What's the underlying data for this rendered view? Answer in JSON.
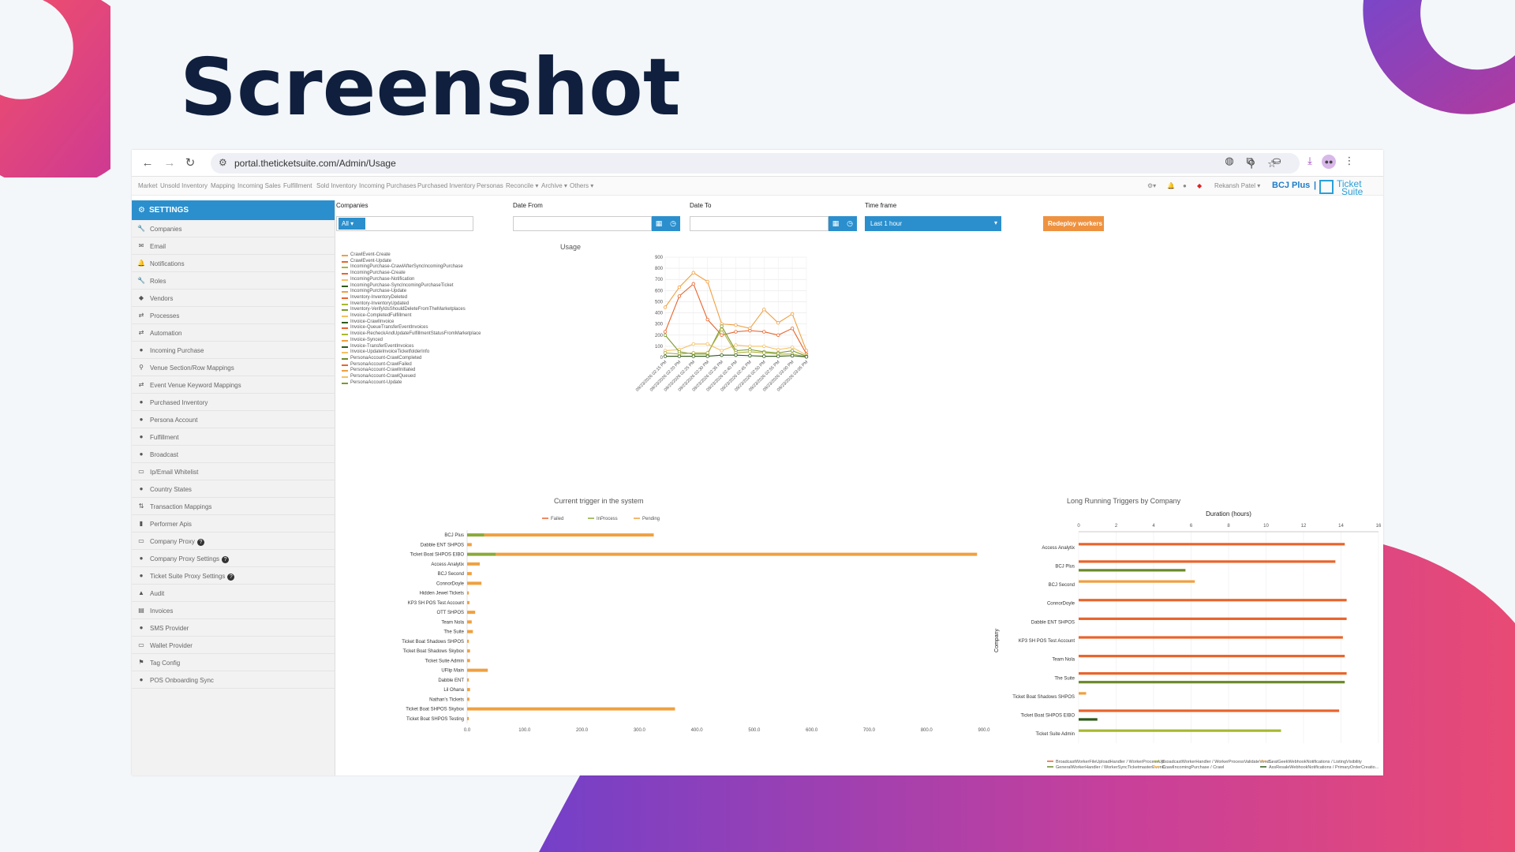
{
  "slide": {
    "title": "Screenshot"
  },
  "browser": {
    "url": "portal.theticketsuite.com/Admin/Usage"
  },
  "topnav": {
    "items": [
      "Market",
      "Unsold Inventory",
      "Mapping",
      "Incoming Sales",
      "Fulfillment",
      "Sold Inventory",
      "Incoming Purchases",
      "Purchased Inventory",
      "Personas",
      "Reconcile",
      "Archive",
      "Others"
    ],
    "user": "Rekansh Patel",
    "brand": "BCJ Plus",
    "logo_line1": "Ticket",
    "logo_line2": "Suite"
  },
  "sidebar": {
    "header": "SETTINGS",
    "items": [
      {
        "label": "Companies",
        "icon": "🔧"
      },
      {
        "label": "Email",
        "icon": "✉"
      },
      {
        "label": "Notifications",
        "icon": "🔔"
      },
      {
        "label": "Roles",
        "icon": "🔧"
      },
      {
        "label": "Vendors",
        "icon": "◆"
      },
      {
        "label": "Processes",
        "icon": "⇄"
      },
      {
        "label": "Automation",
        "icon": "⇄"
      },
      {
        "label": "Incoming Purchase",
        "icon": "●"
      },
      {
        "label": "Venue Section/Row Mappings",
        "icon": "⚲"
      },
      {
        "label": "Event Venue Keyword Mappings",
        "icon": "⇄"
      },
      {
        "label": "Purchased Inventory",
        "icon": "●"
      },
      {
        "label": "Persona Account",
        "icon": "●"
      },
      {
        "label": "Fulfillment",
        "icon": "●"
      },
      {
        "label": "Broadcast",
        "icon": "●"
      },
      {
        "label": "Ip/Email Whitelist",
        "icon": "▭"
      },
      {
        "label": "Country States",
        "icon": "●"
      },
      {
        "label": "Transaction Mappings",
        "icon": "⇅"
      },
      {
        "label": "Performer Apis",
        "icon": "▮"
      },
      {
        "label": "Company Proxy",
        "icon": "▭",
        "help": "?"
      },
      {
        "label": "Company Proxy Settings",
        "icon": "●",
        "help": "?"
      },
      {
        "label": "Ticket Suite Proxy Settings",
        "icon": "●",
        "help": "?"
      },
      {
        "label": "Audit",
        "icon": "▲"
      },
      {
        "label": "Invoices",
        "icon": "▤"
      },
      {
        "label": "SMS Provider",
        "icon": "●"
      },
      {
        "label": "Wallet Provider",
        "icon": "▭"
      },
      {
        "label": "Tag Config",
        "icon": "⚑"
      },
      {
        "label": "POS Onboarding Sync",
        "icon": "●"
      }
    ]
  },
  "filters": {
    "companies_label": "Companies",
    "companies_value": "All",
    "date_from_label": "Date From",
    "date_to_label": "Date To",
    "timeframe_label": "Time frame",
    "timeframe_value": "Last 1 hour",
    "redeploy_label": "Redeploy workers"
  },
  "chart_data": [
    {
      "type": "line",
      "title": "Usage",
      "x": [
        "09/23/2026 02:15 PM",
        "09/23/2026 02:20 PM",
        "09/23/2026 02:25 PM",
        "09/23/2026 02:30 PM",
        "09/23/2026 02:35 PM",
        "09/23/2026 02:40 PM",
        "09/23/2026 02:45 PM",
        "09/23/2026 02:50 PM",
        "09/23/2026 02:55 PM",
        "09/23/2026 03:00 PM",
        "09/23/2026 03:05 PM"
      ],
      "ylim": [
        0,
        900
      ],
      "yticks": [
        0,
        100,
        200,
        300,
        400,
        500,
        600,
        700,
        800,
        900
      ],
      "legend": [
        "CrawlEvent-Create",
        "CrawlEvent-Update",
        "IncomingPurchase-CrawlAfterSyncIncomingPurchase",
        "IncomingPurchase-Create",
        "IncomingPurchase-Notification",
        "IncomingPurchase-SyncIncomingPurchaseTicket",
        "IncomingPurchase-Update",
        "Inventory-InventoryDeleted",
        "Inventory-InventoryUpdated",
        "Inventory-VerifyIdsShouldDeleteFromTheMarketplaces",
        "Invoice-CompletedFulfillment",
        "Invoice-CrawlInvoice",
        "Invoice-QueueTransferEventInvoices",
        "Invoice-RecheckAndUpdateFulfillmentStatusFromMarketplace",
        "Invoice-Synced",
        "Invoice-TransferEventInvoices",
        "Invoice-UpdateInvoiceTicketfolderInfo",
        "PersonaAccount-CrawlCompleted",
        "PersonaAccount-CrawlFailed",
        "PersonaAccount-CrawlInitiated",
        "PersonaAccount-CrawlQueued",
        "PersonaAccount-Update"
      ],
      "series": [
        {
          "name": "CrawlEvent-Create",
          "color": "#f0a040",
          "values": [
            450,
            630,
            760,
            680,
            300,
            290,
            260,
            430,
            310,
            390,
            60
          ]
        },
        {
          "name": "CrawlEvent-Update",
          "color": "#e8642c",
          "values": [
            230,
            550,
            660,
            340,
            200,
            230,
            240,
            230,
            200,
            260,
            30
          ]
        },
        {
          "name": "IncomingPurchase-Create",
          "color": "#f5c060",
          "values": [
            60,
            70,
            120,
            120,
            60,
            110,
            100,
            100,
            70,
            90,
            20
          ]
        },
        {
          "name": "IncomingPurchase-SyncIncomingPurchaseTicket",
          "color": "#7a9a2a",
          "values": [
            200,
            50,
            30,
            30,
            280,
            60,
            70,
            50,
            40,
            60,
            10
          ]
        },
        {
          "name": "Inventory-InventoryUpdated",
          "color": "#b0b040",
          "values": [
            40,
            30,
            40,
            40,
            250,
            40,
            50,
            40,
            30,
            30,
            5
          ]
        },
        {
          "name": "PersonaAccount-CrawlCompleted",
          "color": "#2f5a1a",
          "values": [
            10,
            10,
            10,
            10,
            20,
            20,
            15,
            10,
            10,
            15,
            5
          ]
        }
      ]
    },
    {
      "type": "bar",
      "title": "Current trigger in the system",
      "legend": [
        "Failed",
        "InProcess",
        "Pending"
      ],
      "categories": [
        "BCJ Plus",
        "Dabble ENT SHPOS",
        "Ticket Boat SHPOS EIBO",
        "Access Analytix",
        "BCJ Second",
        "ConnorDoyle",
        "Hidden Jewel Tickets",
        "KP3 SH POS Test Account",
        "OTT SHPOS",
        "Team Nola",
        "The Suite",
        "Ticket Boat Shadows SHPOS",
        "Ticket Boat Shadows Skybox",
        "Ticket Suite Admin",
        "UFlip Main",
        "Dabble ENT",
        "Lil Ohana",
        "Nathan's Tickets",
        "Ticket Boat SHPOS Skybox",
        "Ticket Boat SHPOS Testing"
      ],
      "xlim": [
        0,
        900
      ],
      "xticks": [
        "0.0",
        "100.0",
        "200.0",
        "300.0",
        "400.0",
        "500.0",
        "600.0",
        "700.0",
        "800.0",
        "900.0"
      ],
      "series": [
        {
          "name": "Failed",
          "color": "#e8642c",
          "values": [
            0,
            0,
            0,
            0,
            0,
            0,
            0,
            0,
            0,
            0,
            0,
            0,
            0,
            0,
            0,
            0,
            0,
            0,
            0,
            0
          ]
        },
        {
          "name": "InProcess",
          "color": "#8aaa3a",
          "values": [
            30,
            0,
            50,
            0,
            0,
            0,
            0,
            0,
            0,
            0,
            0,
            0,
            0,
            0,
            0,
            0,
            0,
            0,
            0,
            0
          ]
        },
        {
          "name": "Pending",
          "color": "#f0a040",
          "values": [
            295,
            8,
            838,
            22,
            8,
            25,
            3,
            4,
            14,
            8,
            10,
            3,
            5,
            5,
            36,
            3,
            5,
            4,
            362,
            3
          ]
        }
      ]
    },
    {
      "type": "bar",
      "title": "Long Running Triggers by Company",
      "xlabel": "Duration (hours)",
      "ylabel": "Company",
      "xlim": [
        0,
        16
      ],
      "xticks": [
        "0",
        "2",
        "4",
        "6",
        "8",
        "10",
        "12",
        "14",
        "16"
      ],
      "categories": [
        "Access Analytix",
        "BCJ Plus",
        "BCJ Second",
        "ConnorDoyle",
        "Dabble ENT SHPOS",
        "KP3 SH POS Test Account",
        "Team Nola",
        "The Suite",
        "Ticket Boat Shadows SHPOS",
        "Ticket Boat SHPOS EIBO",
        "Ticket Suite Admin"
      ],
      "legend": [
        "BroadcastWorkerFileUploadHandler / WorkerProcessUp...",
        "BroadcastWorkerHandler / WorkerProcessValidateVend...",
        "SeatGeekWebhookNotifications / ListingVisibility",
        "GeneralWorkerHandler / WorkerSyncTicketmasterEventI...",
        "CrawlIncomingPurchase / Crawl",
        "AxsResaleWebhookNotifications / PrimaryOrderCreatio..."
      ],
      "series": [
        {
          "name": "BroadcastWorkerFileUploadHandler / WorkerProcessUp...",
          "color": "#e8642c",
          "values": [
            14.2,
            13.7,
            null,
            14.3,
            14.3,
            14.1,
            14.2,
            14.3,
            null,
            13.9,
            null
          ]
        },
        {
          "name": "BroadcastWorkerHandler / WorkerProcessValidateVend...",
          "color": "#a8b830",
          "values": [
            null,
            null,
            null,
            null,
            null,
            null,
            null,
            null,
            null,
            null,
            10.8
          ]
        },
        {
          "name": "SeatGeekWebhookNotifications / ListingVisibility",
          "color": "#f0a040",
          "values": [
            null,
            null,
            6.2,
            null,
            null,
            null,
            null,
            null,
            0.4,
            null,
            null
          ]
        },
        {
          "name": "GeneralWorkerHandler / WorkerSyncTicketmasterEventI...",
          "color": "#6a8a2a",
          "values": [
            null,
            5.7,
            null,
            null,
            null,
            null,
            null,
            14.2,
            null,
            null,
            null
          ]
        },
        {
          "name": "CrawlIncomingPurchase / Crawl",
          "color": "#f5c060",
          "values": [
            null,
            null,
            null,
            null,
            null,
            null,
            null,
            null,
            null,
            null,
            null
          ]
        },
        {
          "name": "AxsResaleWebhookNotifications / PrimaryOrderCreatio...",
          "color": "#2f5a1a",
          "values": [
            null,
            null,
            null,
            null,
            null,
            null,
            null,
            null,
            null,
            1.0,
            null
          ]
        }
      ]
    }
  ]
}
